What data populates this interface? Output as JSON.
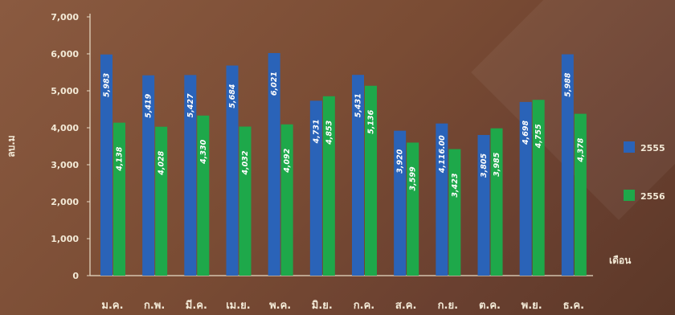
{
  "chart_data": {
    "type": "bar",
    "ylabel": "ลบ.ม",
    "xlabel": "เดือน",
    "ylim": [
      0,
      7000
    ],
    "yticks": [
      "0",
      "1,000",
      "2,000",
      "3,000",
      "4,000",
      "5,000",
      "6,000",
      "7,000"
    ],
    "categories": [
      "ม.ค.",
      "ก.พ.",
      "มี.ค.",
      "เม.ย.",
      "พ.ค.",
      "มิ.ย.",
      "ก.ค.",
      "ส.ค.",
      "ก.ย.",
      "ต.ค.",
      "พ.ย.",
      "ธ.ค."
    ],
    "series": [
      {
        "name": "2555",
        "color": "#2a63b8",
        "values": [
          5983,
          5419,
          5427,
          5684,
          6021,
          4731,
          5431,
          3920,
          4116,
          3805,
          4698,
          5988
        ],
        "labels": [
          "5,983",
          "5,419",
          "5,427",
          "5,684",
          "6,021",
          "4,731",
          "5,431",
          "3,920",
          "4,116.00",
          "3,805",
          "4,698",
          "5,988"
        ]
      },
      {
        "name": "2556",
        "color": "#1ea84a",
        "values": [
          4138,
          4028,
          4330,
          4032,
          4092,
          4853,
          5136,
          3599,
          3423,
          3985,
          4755,
          4378
        ],
        "labels": [
          "4,138",
          "4,028",
          "4,330",
          "4,032",
          "4,092",
          "4,853",
          "5,136",
          "3,599",
          "3,423",
          "3,985",
          "4,755",
          "4,378"
        ]
      }
    ],
    "legend": "right",
    "grid": false
  }
}
